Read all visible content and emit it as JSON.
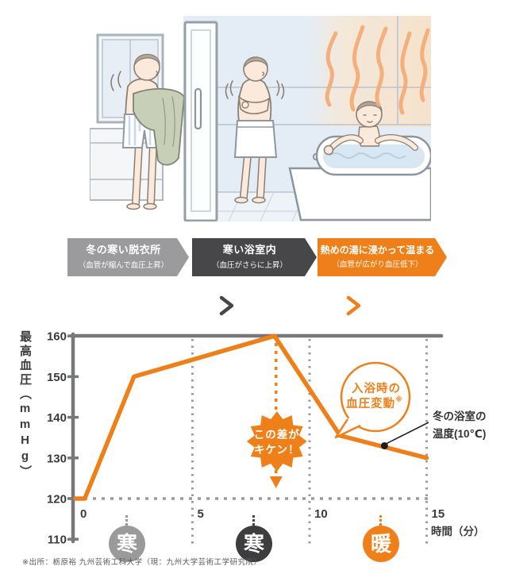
{
  "flow": {
    "steps": [
      {
        "title": "冬の寒い脱衣所",
        "subtitle": "（血管が縮んで血圧上昇）",
        "color": "#9b9b9d",
        "badge": "寒",
        "badge_color": "#9a9a9b"
      },
      {
        "title": "寒い浴室内",
        "subtitle": "（血圧がさらに上昇）",
        "color": "#47474a",
        "badge": "寒",
        "badge_color": "#3d3d3f"
      },
      {
        "title": "熱めの湯に浸かって温まる",
        "subtitle": "（血管が広がり血圧低下）",
        "color": "#ef8019",
        "badge": "暖",
        "badge_color": "#ef8019"
      }
    ]
  },
  "chart_data": {
    "type": "line",
    "title": "",
    "ylabel": "最高血圧（mmHg）",
    "xlabel": "時間（分）",
    "yticks": [
      160,
      150,
      140,
      130,
      120,
      110
    ],
    "xticks": [
      0,
      5,
      10,
      15
    ],
    "ylim": [
      110,
      160
    ],
    "xlim": [
      0,
      15
    ],
    "baseline": 120,
    "grid": {
      "vertical_dashed_at": [
        5,
        10,
        15
      ],
      "horizontal_dashed_at": 120
    },
    "series": [
      {
        "name": "入浴時の血圧変動※",
        "color": "#ef8019",
        "points": [
          [
            0,
            120
          ],
          [
            0.4,
            120
          ],
          [
            2.5,
            150
          ],
          [
            8.5,
            160
          ],
          [
            11.3,
            135.5
          ],
          [
            15,
            130
          ]
        ]
      }
    ],
    "annotations": {
      "burst": {
        "lines": [
          "この差が",
          "キケン！"
        ],
        "x": 8.5
      },
      "bubble": {
        "lines": [
          "入浴時の",
          "血圧変動"
        ],
        "sup": "※"
      },
      "callout": {
        "lines": [
          "冬の浴室の",
          "温度(10℃)"
        ],
        "point": [
          13.2,
          133
        ]
      }
    }
  },
  "footer": {
    "source": "※出所：栃原裕 九州芸術工科大学（現：九州大学芸術工学研究院）"
  },
  "colors": {
    "accent_orange": "#ef8019",
    "dark_gray": "#47474a",
    "mid_gray": "#9b9b9d",
    "axis_gray": "#77787a"
  }
}
